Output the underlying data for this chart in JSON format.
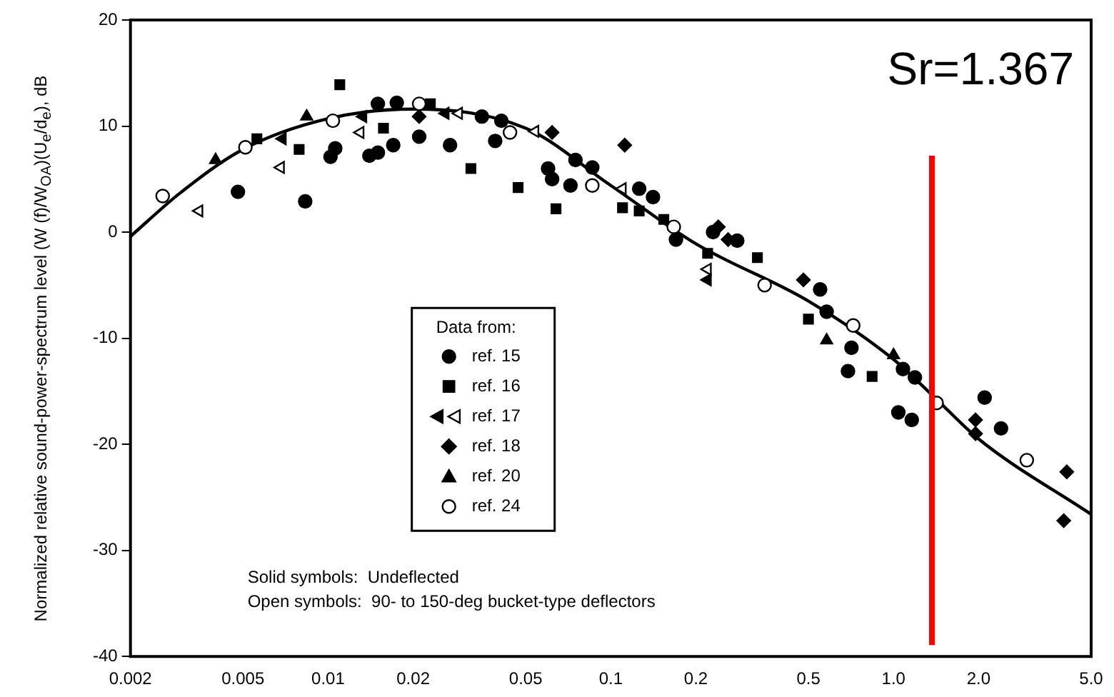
{
  "chart_data": {
    "type": "scatter",
    "ylabel": "Normalized relative sound-power-spectrum level (W (f)/W$_{OA}$)(U$_{e}$/d$_{e}$), dB",
    "legend_title": "Data from:",
    "legend": "bottom left",
    "log": "x",
    "grid": false,
    "xlim": [
      0.002,
      5
    ],
    "xticks": [
      0.002,
      0.005,
      0.01,
      0.02,
      0.05,
      0.1,
      0.2,
      0.5,
      {
        "value": 1,
        "label": "1.0"
      },
      {
        "value": 2,
        "label": "2.0"
      },
      {
        "value": 5,
        "label": "5.0"
      }
    ],
    "ylim": [
      -40,
      20
    ],
    "yticks": [
      -40,
      -30,
      -20,
      -10,
      0,
      10,
      20
    ],
    "ref_lines": [
      {
        "axis": "x",
        "value": 1.367,
        "label": "Sr=1.367",
        "color": "#ff0000"
      }
    ],
    "annotations": [
      "Solid symbols:  Undeflected",
      "Open symbols:  90- to 150-deg bucket-type deflectors"
    ],
    "series": [
      {
        "name": "ref. 15",
        "type": "scatter",
        "marker": "circle",
        "color": "#000000",
        "x": [
          0.0048,
          0.0083,
          0.0102,
          0.0106,
          0.014,
          0.015,
          0.017,
          0.021,
          0.015,
          0.0175,
          0.027,
          0.035,
          0.041,
          0.039,
          0.06,
          0.062,
          0.072,
          0.086,
          0.075,
          0.126,
          0.141,
          0.17,
          0.23,
          0.28,
          0.55,
          0.58,
          0.71,
          0.69,
          1.08,
          1.19,
          1.04,
          1.16,
          2.1,
          2.4
        ],
        "values": [
          3.8,
          2.9,
          7.1,
          7.9,
          7.2,
          7.5,
          8.2,
          9.0,
          12.1,
          12.2,
          8.2,
          10.9,
          10.5,
          8.6,
          6.0,
          5.0,
          4.4,
          6.1,
          6.8,
          4.1,
          3.3,
          -0.7,
          0,
          -0.8,
          -5.4,
          -7.5,
          -10.9,
          -13.1,
          -12.9,
          -13.7,
          -17.0,
          -17.7,
          -15.6,
          -18.5
        ]
      },
      {
        "name": "ref. 16",
        "type": "scatter",
        "marker": "square",
        "color": "#000000",
        "x": [
          0.011,
          0.0056,
          0.0079,
          0.0157,
          0.023,
          0.032,
          0.047,
          0.064,
          0.11,
          0.126,
          0.154,
          0.22,
          0.33,
          0.5,
          0.84
        ],
        "values": [
          13.9,
          8.8,
          7.8,
          9.8,
          12.1,
          6.0,
          4.2,
          2.2,
          2.3,
          2.0,
          1.2,
          -2.0,
          -2.4,
          -8.2,
          -13.6
        ]
      },
      {
        "name": "ref. 17",
        "type": "scatter",
        "marker": "triangle-left",
        "color": "#000000",
        "x": [
          0.0035,
          0.0068,
          0.0069,
          0.013,
          0.0133,
          0.026,
          0.029,
          0.054,
          0.11,
          0.22,
          0.22
        ],
        "values": [
          2.0,
          6.1,
          8.8,
          9.4,
          10.9,
          11.2,
          11.2,
          9.5,
          4.1,
          -4.5,
          -3.5
        ],
        "colors": [
          "#ffffff",
          "#ffffff",
          "#000000",
          "#ffffff",
          "#000000",
          "#000000",
          "#ffffff",
          "#ffffff",
          "#ffffff",
          "#000000",
          "#ffffff"
        ]
      },
      {
        "name": "ref. 18",
        "type": "scatter",
        "marker": "diamond",
        "color": "#000000",
        "x": [
          0.021,
          0.112,
          0.062,
          0.24,
          0.26,
          0.48,
          1.95,
          1.95,
          4.1,
          4.0
        ],
        "values": [
          10.9,
          8.2,
          9.4,
          0.5,
          -0.7,
          -4.5,
          -17.7,
          -19.0,
          -22.6,
          -27.2
        ]
      },
      {
        "name": "ref. 20",
        "type": "scatter",
        "marker": "triangle",
        "color": "#000000",
        "x": [
          0.004,
          0.0084,
          0.58,
          1.0
        ],
        "values": [
          6.8,
          10.9,
          -10.2,
          -11.6
        ]
      },
      {
        "name": "ref. 24",
        "type": "scatter",
        "marker": "circle",
        "color": "#000000",
        "x": [
          0.0026,
          0.0051,
          0.0104,
          0.021,
          0.044,
          0.086,
          0.167,
          0.35,
          0.72,
          1.42,
          2.96
        ],
        "values": [
          3.4,
          8.0,
          10.5,
          12.1,
          9.4,
          4.4,
          0.5,
          -5.0,
          -8.8,
          -16.1,
          -21.5
        ],
        "colors": [
          "#ffffff",
          "#ffffff",
          "#ffffff",
          "#ffffff",
          "#ffffff",
          "#ffffff",
          "#ffffff",
          "#ffffff",
          "#ffffff",
          "#ffffff",
          "#ffffff"
        ]
      },
      {
        "type": "line",
        "marker": "none",
        "line_style": "solid",
        "color": "#000000",
        "x": [
          0.002,
          0.003,
          0.005,
          0.01,
          0.02,
          0.05,
          0.1,
          0.2,
          0.5,
          1,
          1.4,
          2,
          5
        ],
        "values": [
          -0.4,
          3.7,
          7.8,
          10.7,
          11.6,
          9.8,
          4.4,
          -1.1,
          -6.5,
          -12,
          -15.6,
          -19.5,
          -26.6
        ]
      }
    ]
  }
}
